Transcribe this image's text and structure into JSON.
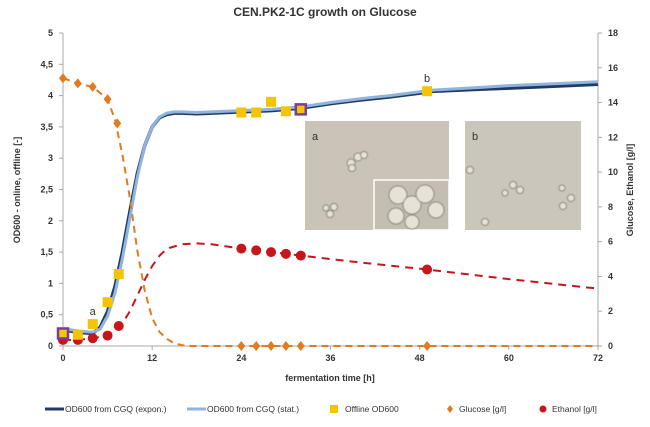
{
  "chart_data": {
    "type": "line",
    "title": "CEN.PK2-1C growth on Glucose",
    "xlabel": "fermentation time  [h]",
    "ylabel": "OD600 - online, offline [-]",
    "ylabel_right": "Glucose, Ethanol [g/l]",
    "xlim": [
      0,
      72
    ],
    "ylim": [
      0,
      5
    ],
    "ylim_right": [
      0,
      18
    ],
    "x_ticks": [
      "0",
      "12",
      "24",
      "36",
      "48",
      "60",
      "72"
    ],
    "y_ticks": [
      "0",
      "0,5",
      "1",
      "1,5",
      "2",
      "2,5",
      "3",
      "3,5",
      "4",
      "4,5",
      "5"
    ],
    "y_ticks_right": [
      "0",
      "2",
      "4",
      "6",
      "8",
      "10",
      "12",
      "14",
      "16",
      "18"
    ],
    "grid": false,
    "legend_position": "bottom",
    "annotations": [
      "a",
      "b"
    ],
    "series": [
      {
        "name": "OD600 from CGQ (expon.)",
        "axis": "left",
        "color": "#1f3a66",
        "x": [
          0,
          1,
          2,
          3,
          4,
          5,
          6,
          7,
          8,
          9,
          10,
          11,
          12,
          13,
          14,
          15,
          16,
          18,
          20,
          24,
          28,
          32,
          36,
          40,
          44,
          48,
          50,
          56,
          60,
          66,
          72
        ],
        "y": [
          0.25,
          0.24,
          0.22,
          0.21,
          0.2,
          0.3,
          0.55,
          0.95,
          1.5,
          2.15,
          2.75,
          3.2,
          3.5,
          3.65,
          3.7,
          3.72,
          3.72,
          3.71,
          3.72,
          3.74,
          3.76,
          3.8,
          3.87,
          3.93,
          3.98,
          4.04,
          4.07,
          4.1,
          4.12,
          4.15,
          4.18
        ]
      },
      {
        "name": "OD600 from CGQ (stat.)",
        "axis": "left",
        "color": "#8fb4de",
        "x": [
          0,
          1,
          2,
          3,
          4,
          5,
          6,
          7,
          8,
          9,
          10,
          11,
          12,
          13,
          14,
          15,
          16,
          18,
          20,
          24,
          28,
          32,
          36,
          40,
          44,
          48,
          50,
          56,
          60,
          66,
          72
        ],
        "y": [
          0.27,
          0.26,
          0.24,
          0.23,
          0.22,
          0.27,
          0.48,
          0.85,
          1.4,
          2.05,
          2.7,
          3.2,
          3.5,
          3.66,
          3.72,
          3.74,
          3.74,
          3.73,
          3.74,
          3.76,
          3.78,
          3.82,
          3.89,
          3.95,
          4.0,
          4.06,
          4.09,
          4.13,
          4.16,
          4.19,
          4.22
        ]
      },
      {
        "name": "Offline OD600",
        "axis": "left",
        "color": "#f5c400",
        "x": [
          0,
          2,
          4,
          6,
          7.5,
          24,
          26,
          28,
          30,
          32,
          49
        ],
        "y": [
          0.2,
          0.18,
          0.35,
          0.7,
          1.15,
          3.73,
          3.73,
          3.9,
          3.75,
          3.78,
          4.07
        ]
      },
      {
        "name": "Glucose [g/l]",
        "axis": "right",
        "color": "#e07b1f",
        "x": [
          0,
          2,
          4,
          6,
          7.3,
          24,
          26,
          28,
          30,
          32,
          49
        ],
        "y": [
          15.4,
          15.1,
          14.9,
          14.2,
          12.8,
          0,
          0,
          0,
          0,
          0,
          0
        ],
        "fit_x": [
          0,
          2,
          4,
          6,
          7,
          8,
          9,
          10,
          11,
          12,
          13,
          14,
          15,
          16,
          17,
          18,
          72
        ],
        "fit_y": [
          15.4,
          15.1,
          14.9,
          14.2,
          13,
          11,
          8.5,
          5.5,
          3.2,
          1.6,
          0.8,
          0.4,
          0.15,
          0.05,
          0,
          0,
          0
        ]
      },
      {
        "name": "Ethanol [g/l]",
        "axis": "right",
        "color": "#c8151b",
        "x": [
          0,
          2,
          4,
          6,
          7.5,
          24,
          26,
          28,
          30,
          32,
          49
        ],
        "y": [
          0.35,
          0.35,
          0.45,
          0.6,
          1.15,
          5.6,
          5.5,
          5.4,
          5.3,
          5.2,
          4.4
        ],
        "fit_x": [
          0,
          2,
          4,
          6,
          8,
          9,
          10,
          11,
          12,
          13,
          14,
          16,
          18,
          20,
          24,
          32,
          40,
          49,
          60,
          72
        ],
        "fit_y": [
          0.35,
          0.35,
          0.45,
          0.6,
          1.3,
          2.0,
          2.9,
          3.8,
          4.6,
          5.2,
          5.6,
          5.85,
          5.9,
          5.85,
          5.6,
          5.2,
          4.8,
          4.4,
          3.85,
          3.3
        ]
      }
    ],
    "highlighted_points": [
      {
        "x": 0,
        "y": 0.2
      },
      {
        "x": 32,
        "y": 3.78
      }
    ],
    "point_labels": [
      {
        "label": "a",
        "x": 4,
        "y": 0.35
      },
      {
        "label": "b",
        "x": 49,
        "y": 4.07
      }
    ]
  },
  "insets": {
    "a_label": "a",
    "b_label": "b"
  }
}
